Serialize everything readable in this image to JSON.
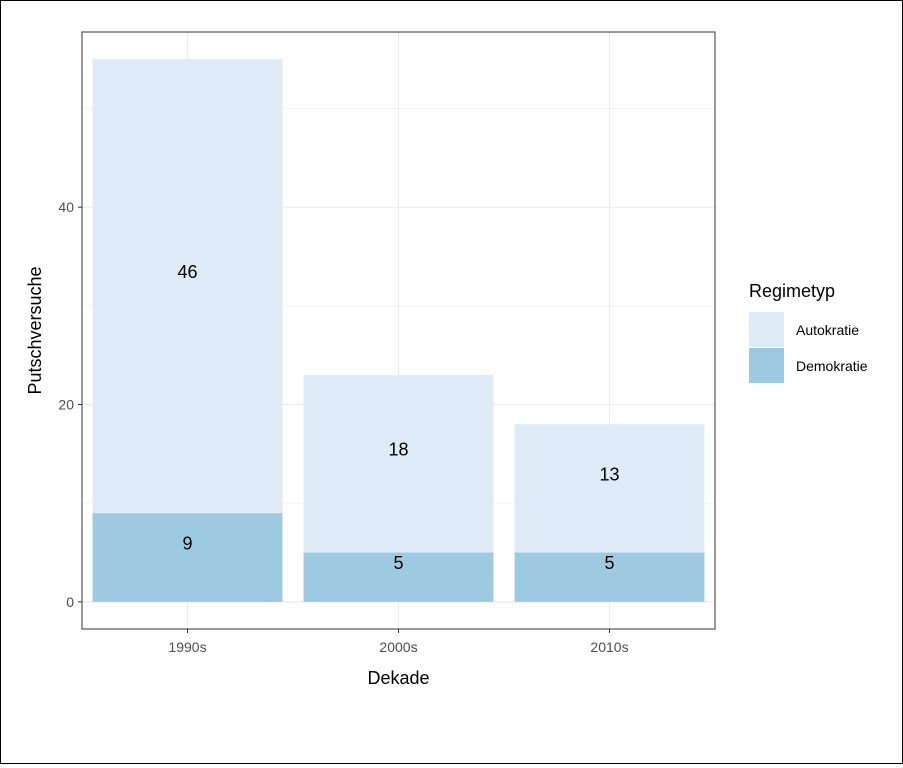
{
  "chart_data": {
    "type": "bar",
    "stacked": true,
    "title": "",
    "xlabel": "Dekade",
    "ylabel": "Putschversuche",
    "categories": [
      "1990s",
      "2000s",
      "2010s"
    ],
    "series": [
      {
        "name": "Demokratie",
        "values": [
          9,
          5,
          5
        ],
        "color": "#9ecae1"
      },
      {
        "name": "Autokratie",
        "values": [
          46,
          18,
          13
        ],
        "color": "#deebf7"
      }
    ],
    "ylim": [
      -2.75,
      57.75
    ],
    "yticks": [
      0,
      20,
      40
    ],
    "grid": true,
    "legend": {
      "title": "Regimetyp",
      "position": "right",
      "entries": [
        {
          "label": "Autokratie",
          "color": "#deebf7"
        },
        {
          "label": "Demokratie",
          "color": "#9ecae1"
        }
      ]
    }
  }
}
